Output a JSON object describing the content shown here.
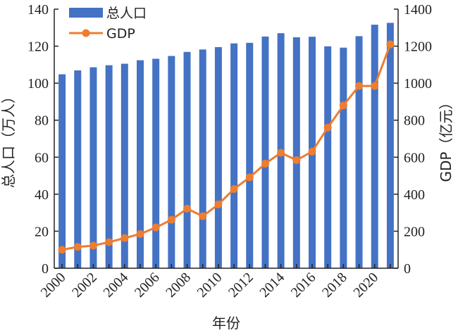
{
  "chart_data": {
    "type": "bar+line",
    "title": "",
    "xlabel": "年份",
    "ylabel_left": "总人口（万人）",
    "ylabel_right": "GDP（亿元）",
    "categories": [
      "2000",
      "2001",
      "2002",
      "2003",
      "2004",
      "2005",
      "2006",
      "2007",
      "2008",
      "2009",
      "2010",
      "2011",
      "2012",
      "2013",
      "2014",
      "2015",
      "2016",
      "2017",
      "2018",
      "2019",
      "2020",
      "2021"
    ],
    "x_tick_labels": [
      "2000",
      "2002",
      "2004",
      "2006",
      "2008",
      "2010",
      "2012",
      "2014",
      "2016",
      "2018",
      "2020"
    ],
    "ylim_left": [
      0,
      140
    ],
    "yticks_left": [
      "0",
      "20",
      "40",
      "60",
      "80",
      "100",
      "120",
      "140"
    ],
    "ylim_right": [
      0,
      1400
    ],
    "yticks_right": [
      "0",
      "200",
      "400",
      "600",
      "800",
      "1000",
      "1200",
      "1400"
    ],
    "series": [
      {
        "name": "总人口",
        "type": "bar",
        "axis": "left",
        "color": "#4472C4",
        "values": [
          104.8,
          106.9,
          108.6,
          109.7,
          110.5,
          112.4,
          113.2,
          114.7,
          116.9,
          118.2,
          119.5,
          121.5,
          121.8,
          125.2,
          127.0,
          124.8,
          125.1,
          119.9,
          119.2,
          125.4,
          131.6,
          132.6
        ]
      },
      {
        "name": "GDP",
        "type": "line",
        "axis": "right",
        "color": "#ED7D31",
        "values": [
          100,
          115,
          122,
          141,
          163,
          185,
          220,
          262,
          322,
          281,
          345,
          428,
          491,
          565,
          624,
          584,
          630,
          760,
          880,
          985,
          985,
          1210
        ]
      }
    ],
    "legend": {
      "position": "top-left",
      "entries": [
        "总人口",
        "GDP"
      ]
    },
    "grid": false
  }
}
